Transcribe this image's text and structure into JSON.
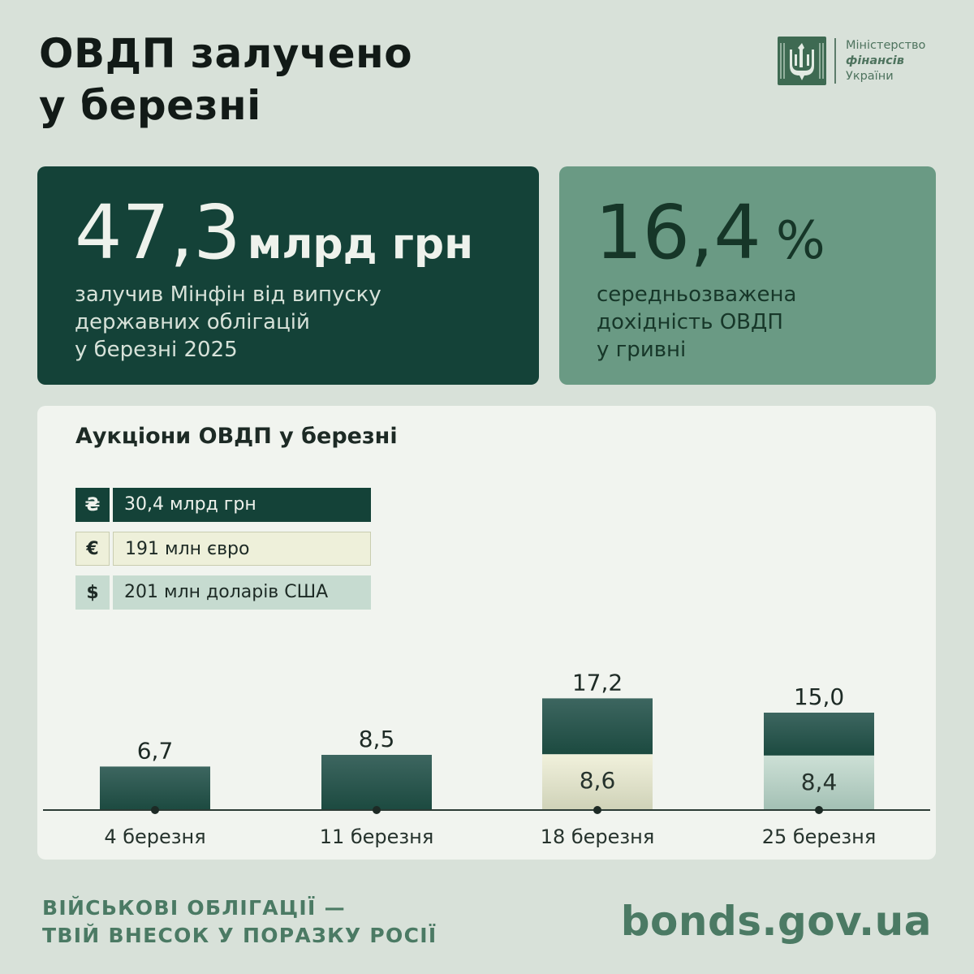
{
  "title": {
    "line1": "ОВДП залучено",
    "line2": "у березні"
  },
  "logo": {
    "line1": "Міністерство",
    "line2": "фінансів",
    "line3": "України",
    "icon": "trident-emblem-icon"
  },
  "stat_main": {
    "value": "47,3",
    "unit": "млрд грн",
    "text_line1": "залучив Мінфін від випуску",
    "text_line2": "державних облігацій",
    "text_line3": "у березні 2025"
  },
  "stat_yield": {
    "value": "16,4",
    "unit": "%",
    "text_line1": "середньозважена",
    "text_line2": "дохідність ОВДП",
    "text_line3": "у гривні"
  },
  "chart_data": {
    "type": "bar",
    "title": "Аукціони ОВДП у березні",
    "categories": [
      "4 березня",
      "11 березня",
      "18 березня",
      "25 березня"
    ],
    "totals": [
      6.7,
      8.5,
      17.2,
      15.0
    ],
    "total_labels": [
      "6,7",
      "8,5",
      "17,2",
      "15,0"
    ],
    "series": [
      {
        "name": "30,4 млрд грн",
        "symbol": "₴",
        "values": [
          6.7,
          8.5,
          8.6,
          6.6
        ],
        "color": "#1c4a40",
        "top_color": "#3d6660"
      },
      {
        "name": "191 млн євро",
        "symbol": "€",
        "values": [
          0,
          0,
          8.6,
          0
        ],
        "labels": [
          "",
          "",
          "8,6",
          ""
        ],
        "color": "#cfd2b8",
        "top_color": "#f1f1dc"
      },
      {
        "name": "201 млн доларів США",
        "symbol": "$",
        "values": [
          0,
          0,
          0,
          8.4
        ],
        "labels": [
          "",
          "",
          "",
          "8,4"
        ],
        "color": "#a3c0b4",
        "top_color": "#cde0d6"
      }
    ],
    "ylim": [
      0,
      18
    ],
    "grid": false,
    "legend": "top-left"
  },
  "legend": {
    "items": [
      {
        "symbol": "₴",
        "label": "30,4 млрд грн"
      },
      {
        "symbol": "€",
        "label": "191 млн євро"
      },
      {
        "symbol": "$",
        "label": "201 млн доларів США"
      }
    ]
  },
  "footer": {
    "slogan_line1": "ВІЙСЬКОВІ ОБЛІГАЦІЇ —",
    "slogan_line2": "ТВІЙ ВНЕСОК У ПОРАЗКУ РОСІЇ",
    "url": "bonds.gov.ua"
  }
}
